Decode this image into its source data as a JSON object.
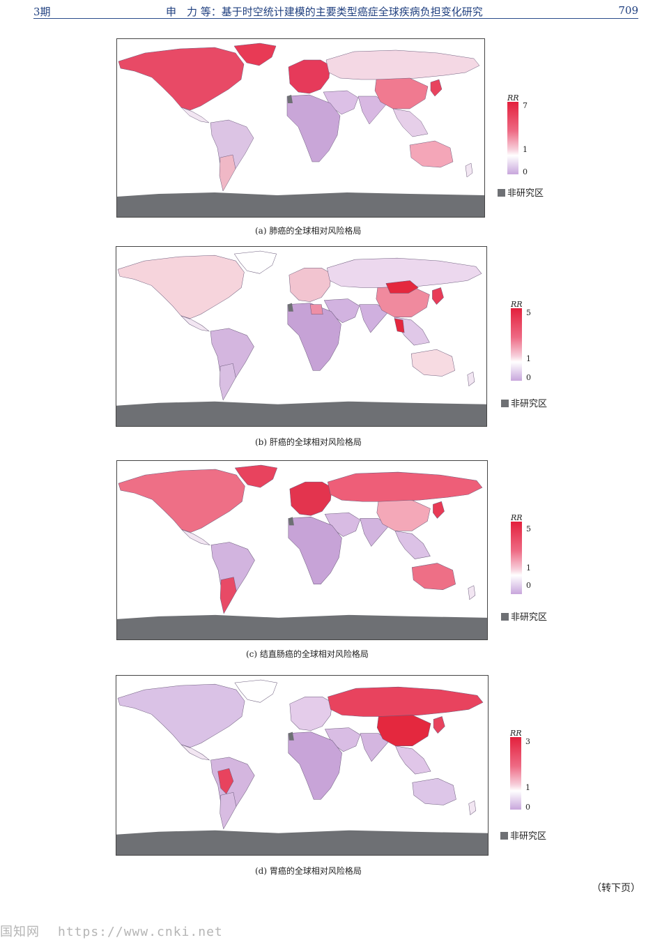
{
  "header": {
    "issue": "3期",
    "title": "申　力 等：基于时空统计建模的主要类型癌症全球疾病负担变化研究",
    "page": "709"
  },
  "legend_common": {
    "rr_label": "RR",
    "non_study_label": "非研究区",
    "non_study_color": "#6e7074"
  },
  "maps": [
    {
      "caption": "(a) 肺癌的全球相对风险格局",
      "ticks": [
        "7",
        "1",
        "0"
      ],
      "colors": {
        "na": "#e84a66",
        "greenland": "#e83a55",
        "sa": "#dcc4e4",
        "argentina": "#f0b8c6",
        "europe": "#e63a5a",
        "russia": "#f4d8e4",
        "china": "#f07a90",
        "japan": "#e8435e",
        "africa": "#c9a6d8",
        "mideast": "#dcc0e6",
        "india": "#d8b8e2",
        "seasia": "#e6cfe9",
        "australia": "#f4a6b8"
      }
    },
    {
      "caption": "(b) 肝癌的全球相对风险格局",
      "ticks": [
        "5",
        "1",
        "0"
      ],
      "colors": {
        "na": "#f6d4dc",
        "greenland": "#ffffff",
        "sa": "#d4b6df",
        "argentina": "#d9bfe3",
        "europe": "#f2c4d0",
        "russia": "#ecd8ee",
        "china": "#f08a9e",
        "mongolia": "#e4283e",
        "japan": "#e83c58",
        "africa": "#c6a2d6",
        "egypt": "#ee8fa6",
        "mideast": "#d2b3e0",
        "india": "#d0b0df",
        "seasia": "#e0c8e8",
        "australia": "#f7dbe2",
        "thailand": "#e4283e"
      }
    },
    {
      "caption": "(c) 结直肠癌的全球相对风险格局",
      "ticks": [
        "5",
        "1",
        "0"
      ],
      "colors": {
        "na": "#ee6f86",
        "greenland": "#e8435e",
        "sa": "#d2b4df",
        "argentina": "#e84a66",
        "europe": "#e3344e",
        "russia": "#ee5e78",
        "china": "#f4a8b8",
        "japan": "#e83a55",
        "africa": "#c7a3d7",
        "mideast": "#d8bbe3",
        "india": "#d2b4df",
        "seasia": "#dcc2e6",
        "australia": "#ee6f86"
      }
    },
    {
      "caption": "(d) 胃癌的全球相对风险格局",
      "ticks": [
        "3",
        "1",
        "0"
      ],
      "colors": {
        "na": "#dac2e6",
        "greenland": "#ffffff",
        "sa": "#d4b6df",
        "andes": "#e8435e",
        "argentina": "#d8bce2",
        "europe": "#e4ccea",
        "russia": "#e8435e",
        "china": "#e4283e",
        "japan": "#e8435e",
        "africa": "#c8a4d8",
        "mideast": "#d9bde4",
        "india": "#d4b6e0",
        "seasia": "#e0c6e8",
        "australia": "#ddc6e8"
      }
    }
  ],
  "continue_note": "（转下页）",
  "watermark": {
    "site": "国知网",
    "url": "https://www.cnki.net"
  }
}
